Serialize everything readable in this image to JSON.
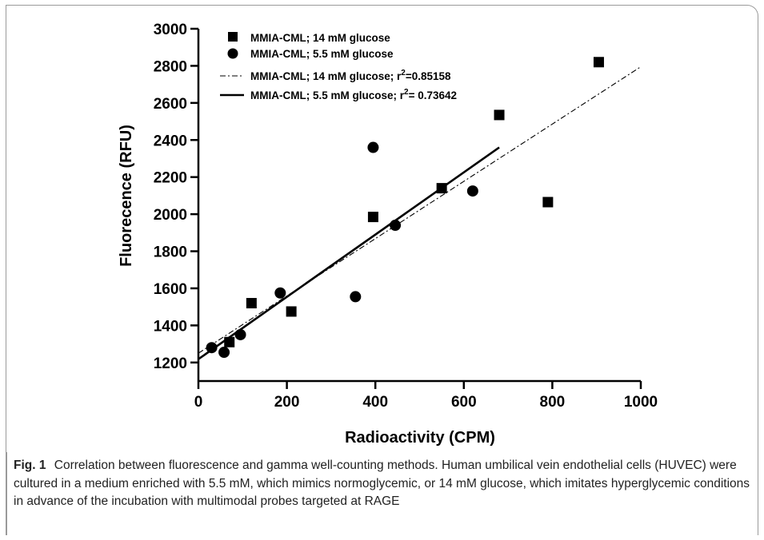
{
  "chart_data": {
    "type": "scatter",
    "xlabel": "Radioactivity (CPM)",
    "ylabel": "Fluorecence (RFU)",
    "xlim": [
      0,
      1000
    ],
    "ylim": [
      1100,
      3000
    ],
    "x_ticks": [
      "0",
      "200",
      "400",
      "600",
      "800",
      "1000"
    ],
    "y_ticks": [
      "1200",
      "1400",
      "1600",
      "1800",
      "2000",
      "2200",
      "2400",
      "2600",
      "2800",
      "3000"
    ],
    "legend_position": "top-left",
    "grid": false,
    "series": [
      {
        "name": "MMIA-CML; 14 mM glucose",
        "marker": "square",
        "points": [
          [
            70,
            1310
          ],
          [
            120,
            1520
          ],
          [
            210,
            1475
          ],
          [
            395,
            1985
          ],
          [
            550,
            2140
          ],
          [
            680,
            2535
          ],
          [
            790,
            2065
          ],
          [
            905,
            2820
          ]
        ]
      },
      {
        "name": "MMIA-CML; 5.5 mM glucose",
        "marker": "circle",
        "points": [
          [
            30,
            1280
          ],
          [
            58,
            1255
          ],
          [
            95,
            1350
          ],
          [
            185,
            1575
          ],
          [
            355,
            1555
          ],
          [
            395,
            2360
          ],
          [
            445,
            1940
          ],
          [
            620,
            2125
          ]
        ]
      }
    ],
    "fit_lines": [
      {
        "label_prefix": "MMIA-CML; 14 mM glucose; r",
        "label_suffix": "=0.85158",
        "style": "dash-dot",
        "x_range": [
          0,
          1000
        ],
        "y_range": [
          1250,
          2795
        ]
      },
      {
        "label_prefix": "MMIA-CML; 5.5 mM glucose; r",
        "label_suffix": "= 0.73642",
        "style": "solid",
        "x_range": [
          0,
          680
        ],
        "y_range": [
          1218,
          2360
        ]
      }
    ]
  },
  "caption": {
    "label": "Fig. 1",
    "text": "Correlation between fluorescence and gamma well-counting methods. Human umbilical vein endothelial cells (HUVEC) were cultured in a medium enriched with 5.5 mM, which mimics normoglycemic, or 14 mM glucose, which imitates hyperglycemic conditions in advance of the incubation with multimodal probes targeted at RAGE"
  }
}
